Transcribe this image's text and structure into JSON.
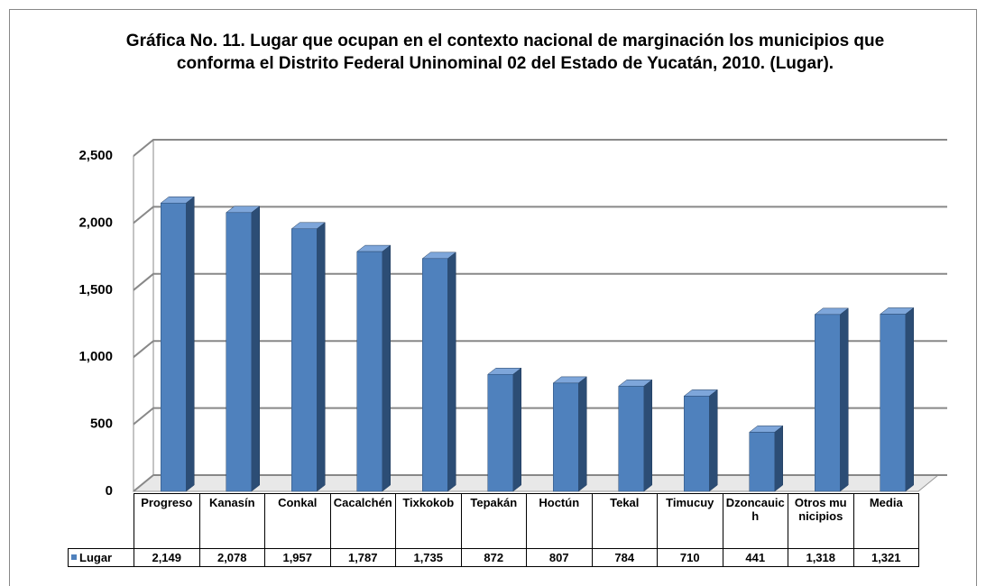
{
  "chart_data": {
    "type": "bar3d",
    "title": "Gráfica No. 11. Lugar que ocupan en el contexto nacional de marginación los municipios que conforma el  Distrito Federal Uninominal 02 del Estado de Yucatán, 2010. (Lugar).",
    "categories": [
      "Progreso",
      "Kanasín",
      "Conkal",
      "Cacalchén",
      "Tixkokob",
      "Tepakán",
      "Hoctún",
      "Tekal",
      "Timucuy",
      "Dzoncauich",
      "Otros municipios",
      "Media"
    ],
    "series": [
      {
        "name": "Lugar",
        "color": "#4f81bd",
        "values": [
          2149,
          2078,
          1957,
          1787,
          1735,
          872,
          807,
          784,
          710,
          441,
          1318,
          1321
        ],
        "value_labels": [
          "2,149",
          "2,078",
          "1,957",
          "1,787",
          "1,735",
          "872",
          "807",
          "784",
          "710",
          "441",
          "1,318",
          "1,321"
        ]
      }
    ],
    "ylim": [
      0,
      2500
    ],
    "yticks": [
      0,
      500,
      {
        "value": 1000,
        "label": "1,000"
      },
      {
        "value": 1500,
        "label": "1,500"
      },
      {
        "value": 2000,
        "label": "2,000"
      },
      {
        "value": 2500,
        "label": "2,500"
      }
    ],
    "grid": true
  }
}
